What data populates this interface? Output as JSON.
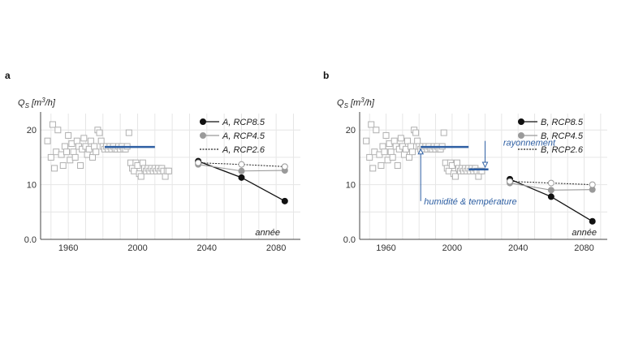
{
  "chart_data": [
    {
      "type": "scatter",
      "panel": "a",
      "ylabel": "Q",
      "ylabel_sub": "S",
      "ylabel_unit": " [m",
      "ylabel_sup": "3",
      "ylabel_unit_end": "/h]",
      "xlabel": "année",
      "xticks": [
        1960,
        2000,
        2040,
        2080
      ],
      "yticks": [
        0,
        10,
        20
      ],
      "ytick_labels": [
        "0.0",
        "10",
        "20"
      ],
      "xlim": [
        1944,
        2094
      ],
      "ylim": [
        0,
        23
      ],
      "grid": true,
      "observed": [
        [
          1948,
          18
        ],
        [
          1950,
          15
        ],
        [
          1952,
          13
        ],
        [
          1951,
          21
        ],
        [
          1953,
          16
        ],
        [
          1954,
          20
        ],
        [
          1956,
          15.5
        ],
        [
          1957,
          13.5
        ],
        [
          1958,
          17
        ],
        [
          1959,
          16
        ],
        [
          1960,
          19
        ],
        [
          1961,
          14.5
        ],
        [
          1962,
          17.5
        ],
        [
          1963,
          16
        ],
        [
          1964,
          15
        ],
        [
          1965,
          18
        ],
        [
          1966,
          17
        ],
        [
          1967,
          13.5
        ],
        [
          1968,
          16.5
        ],
        [
          1969,
          18.5
        ],
        [
          1970,
          17
        ],
        [
          1971,
          15.5
        ],
        [
          1972,
          16.5
        ],
        [
          1973,
          18
        ],
        [
          1974,
          15
        ],
        [
          1975,
          17
        ],
        [
          1976,
          16
        ],
        [
          1977,
          20
        ],
        [
          1978,
          19.5
        ],
        [
          1979,
          18
        ],
        [
          1980,
          17
        ],
        [
          1981,
          16.5
        ],
        [
          1982,
          17
        ],
        [
          1983,
          16.5
        ],
        [
          1984,
          17
        ],
        [
          1985,
          16.5
        ],
        [
          1986,
          17
        ],
        [
          1987,
          16.5
        ],
        [
          1988,
          16.5
        ],
        [
          1989,
          17
        ],
        [
          1990,
          16.5
        ],
        [
          1991,
          17
        ],
        [
          1992,
          16.5
        ],
        [
          1993,
          16.5
        ],
        [
          1994,
          17
        ],
        [
          1995,
          19.5
        ],
        [
          1996,
          14
        ],
        [
          1997,
          13
        ],
        [
          1998,
          12.5
        ],
        [
          1999,
          14
        ],
        [
          2000,
          13.5
        ],
        [
          2001,
          12
        ],
        [
          2002,
          11.5
        ],
        [
          2003,
          14
        ],
        [
          2004,
          13
        ],
        [
          2005,
          12.5
        ],
        [
          2006,
          13
        ],
        [
          2007,
          12.5
        ],
        [
          2008,
          13
        ],
        [
          2009,
          12.5
        ],
        [
          2010,
          13
        ],
        [
          2011,
          12.5
        ],
        [
          2012,
          13
        ],
        [
          2013,
          12.5
        ],
        [
          2014,
          13
        ],
        [
          2015,
          12.5
        ],
        [
          2016,
          11.5
        ],
        [
          2017,
          12.5
        ],
        [
          2018,
          12.5
        ]
      ],
      "mean_lines": [
        {
          "x": [
            1981,
            2010
          ],
          "y": 16.9,
          "color": "#2e5fa3"
        }
      ],
      "series": [
        {
          "name": "A, RCP8.5",
          "style": "solid-black",
          "x": [
            2035,
            2060,
            2085
          ],
          "y": [
            14.3,
            11.3,
            7.0
          ]
        },
        {
          "name": "A, RCP4.5",
          "style": "solid-gray",
          "x": [
            2035,
            2060,
            2085
          ],
          "y": [
            13.7,
            12.5,
            12.6
          ]
        },
        {
          "name": "A, RCP2.6",
          "style": "dotted-open",
          "x": [
            2035,
            2060,
            2085
          ],
          "y": [
            14.0,
            13.7,
            13.3
          ]
        }
      ],
      "legend": [
        "A, RCP8.5",
        "A, RCP4.5",
        "A, RCP2.6"
      ]
    },
    {
      "type": "scatter",
      "panel": "b",
      "ylabel": "Q",
      "ylabel_sub": "S",
      "ylabel_unit": " [m",
      "ylabel_sup": "3",
      "ylabel_unit_end": "/h]",
      "xlabel": "année",
      "xticks": [
        1960,
        2000,
        2040,
        2080
      ],
      "yticks": [
        0,
        10,
        20
      ],
      "ytick_labels": [
        "0.0",
        "10",
        "20"
      ],
      "xlim": [
        1944,
        2094
      ],
      "ylim": [
        0,
        23
      ],
      "grid": true,
      "observed": [
        [
          1948,
          18
        ],
        [
          1950,
          15
        ],
        [
          1952,
          13
        ],
        [
          1951,
          21
        ],
        [
          1953,
          16
        ],
        [
          1954,
          20
        ],
        [
          1956,
          15.5
        ],
        [
          1957,
          13.5
        ],
        [
          1958,
          17
        ],
        [
          1959,
          16
        ],
        [
          1960,
          19
        ],
        [
          1961,
          14.5
        ],
        [
          1962,
          17.5
        ],
        [
          1963,
          16
        ],
        [
          1964,
          15
        ],
        [
          1965,
          18
        ],
        [
          1966,
          17
        ],
        [
          1967,
          13.5
        ],
        [
          1968,
          16.5
        ],
        [
          1969,
          18.5
        ],
        [
          1970,
          17
        ],
        [
          1971,
          15.5
        ],
        [
          1972,
          16.5
        ],
        [
          1973,
          18
        ],
        [
          1974,
          15
        ],
        [
          1975,
          17
        ],
        [
          1976,
          16
        ],
        [
          1977,
          20
        ],
        [
          1978,
          19.5
        ],
        [
          1979,
          18
        ],
        [
          1980,
          17
        ],
        [
          1981,
          16.5
        ],
        [
          1982,
          17
        ],
        [
          1983,
          16.5
        ],
        [
          1984,
          17
        ],
        [
          1985,
          16.5
        ],
        [
          1986,
          17
        ],
        [
          1987,
          16.5
        ],
        [
          1988,
          16.5
        ],
        [
          1989,
          17
        ],
        [
          1990,
          16.5
        ],
        [
          1991,
          17
        ],
        [
          1992,
          16.5
        ],
        [
          1993,
          16.5
        ],
        [
          1994,
          17
        ],
        [
          1995,
          19.5
        ],
        [
          1996,
          14
        ],
        [
          1997,
          13
        ],
        [
          1998,
          12.5
        ],
        [
          1999,
          14
        ],
        [
          2000,
          13.5
        ],
        [
          2001,
          12
        ],
        [
          2002,
          11.5
        ],
        [
          2003,
          14
        ],
        [
          2004,
          13
        ],
        [
          2005,
          12.5
        ],
        [
          2006,
          13
        ],
        [
          2007,
          12.5
        ],
        [
          2008,
          13
        ],
        [
          2009,
          12.5
        ],
        [
          2010,
          13
        ],
        [
          2011,
          12.5
        ],
        [
          2012,
          13
        ],
        [
          2013,
          12.5
        ],
        [
          2014,
          13
        ],
        [
          2015,
          12.5
        ],
        [
          2016,
          11.5
        ],
        [
          2017,
          12.5
        ],
        [
          2018,
          12.5
        ]
      ],
      "mean_lines": [
        {
          "x": [
            1981,
            2010
          ],
          "y": 16.9,
          "color": "#2e5fa3"
        },
        {
          "x": [
            2010,
            2022
          ],
          "y": 12.8,
          "color": "#2e5fa3"
        }
      ],
      "annotations": [
        {
          "text": "rayonnement",
          "arrow_x": 2020,
          "arrow_from_y": 18.0,
          "arrow_to_y": 13.2,
          "label_x": 2031,
          "label_y": 17.7
        },
        {
          "text": "humidité & température",
          "arrow_x": 1981,
          "arrow_from_y": 7.0,
          "arrow_to_y": 16.5,
          "label_x": 1983,
          "label_y": 7.0
        }
      ],
      "series": [
        {
          "name": "B, RCP8.5",
          "style": "solid-black",
          "x": [
            2035,
            2060,
            2085
          ],
          "y": [
            11.0,
            7.8,
            3.3
          ]
        },
        {
          "name": "B, RCP4.5",
          "style": "solid-gray",
          "x": [
            2035,
            2060,
            2085
          ],
          "y": [
            10.3,
            9.0,
            9.1
          ]
        },
        {
          "name": "B, RCP2.6",
          "style": "dotted-open",
          "x": [
            2035,
            2060,
            2085
          ],
          "y": [
            10.6,
            10.3,
            10.0
          ]
        }
      ],
      "legend": [
        "B, RCP8.5",
        "B, RCP4.5",
        "B, RCP2.6"
      ]
    }
  ],
  "colors": {
    "blue": "#2e5fa3",
    "black": "#111111",
    "gray": "#9a9a9a",
    "obs": "#b0b0b0",
    "grid": "#e6e6e6",
    "axis": "#444444"
  }
}
